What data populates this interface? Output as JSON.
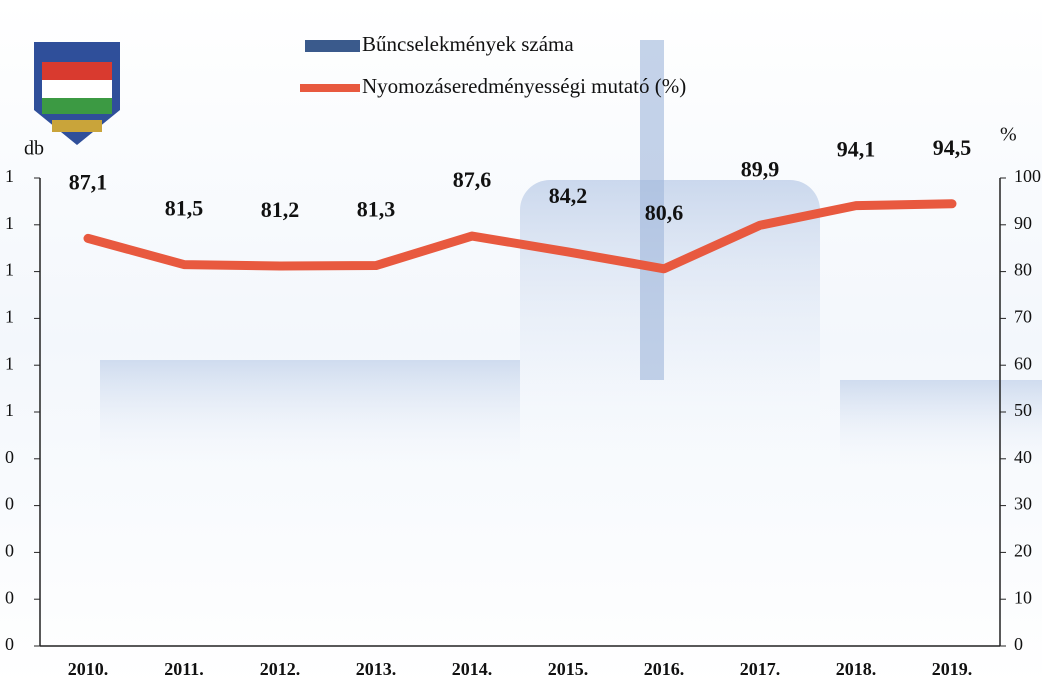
{
  "chart_data": {
    "type": "bar-line",
    "y_label": "db",
    "y2_label": "%",
    "left_tick_labels": [
      "1",
      "1",
      "1",
      "1",
      "1",
      "1",
      "0",
      "0",
      "0",
      "0",
      "0"
    ],
    "categories": [
      "2010.",
      "2011.",
      "2012.",
      "2013.",
      "2014.",
      "2015.",
      "2016.",
      "2017.",
      "2018.",
      "2019."
    ],
    "series": [
      {
        "name": "Bűncselekmények száma",
        "color": "#3a5a8c",
        "kind": "bar",
        "values": [
          null,
          null,
          null,
          null,
          null,
          null,
          null,
          null,
          null,
          null
        ]
      },
      {
        "name": "Nyomozáseredményességi mutató (%)",
        "color": "#e8593f",
        "kind": "line",
        "axis": "y2",
        "values": [
          87.1,
          81.5,
          81.2,
          81.3,
          87.6,
          84.2,
          80.6,
          89.9,
          94.1,
          94.5
        ],
        "value_labels": [
          "87,1",
          "81,5",
          "81,2",
          "81,3",
          "87,6",
          "84,2",
          "80,6",
          "89,9",
          "94,1",
          "94,5"
        ]
      }
    ],
    "y2lim": [
      0,
      100
    ],
    "y2ticks": [
      0,
      10,
      20,
      30,
      40,
      50,
      60,
      70,
      80,
      90,
      100
    ]
  }
}
